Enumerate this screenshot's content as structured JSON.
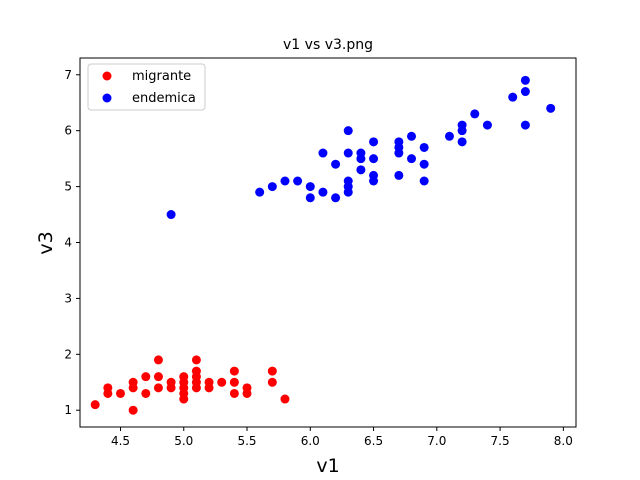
{
  "chart_data": {
    "type": "scatter",
    "title": "v1 vs v3.png",
    "xlabel": "v1",
    "ylabel": "v3",
    "xlim": [
      4.18,
      8.1
    ],
    "ylim": [
      0.7,
      7.3
    ],
    "xticks": [
      "4.5",
      "5.0",
      "5.5",
      "6.0",
      "6.5",
      "7.0",
      "7.5",
      "8.0"
    ],
    "yticks": [
      "1",
      "2",
      "3",
      "4",
      "5",
      "6",
      "7"
    ],
    "grid": false,
    "legend_position": "upper-left",
    "series": [
      {
        "name": "migrante",
        "color": "#ff0000",
        "points": [
          [
            4.3,
            1.1
          ],
          [
            4.4,
            1.4
          ],
          [
            4.4,
            1.3
          ],
          [
            4.5,
            1.3
          ],
          [
            4.6,
            1.0
          ],
          [
            4.6,
            1.4
          ],
          [
            4.6,
            1.5
          ],
          [
            4.7,
            1.3
          ],
          [
            4.7,
            1.6
          ],
          [
            4.8,
            1.4
          ],
          [
            4.8,
            1.6
          ],
          [
            4.8,
            1.9
          ],
          [
            4.9,
            1.4
          ],
          [
            4.9,
            1.5
          ],
          [
            5.0,
            1.2
          ],
          [
            5.0,
            1.3
          ],
          [
            5.0,
            1.4
          ],
          [
            5.0,
            1.5
          ],
          [
            5.0,
            1.6
          ],
          [
            5.1,
            1.4
          ],
          [
            5.1,
            1.5
          ],
          [
            5.1,
            1.6
          ],
          [
            5.1,
            1.7
          ],
          [
            5.1,
            1.9
          ],
          [
            5.2,
            1.4
          ],
          [
            5.2,
            1.5
          ],
          [
            5.3,
            1.5
          ],
          [
            5.4,
            1.3
          ],
          [
            5.4,
            1.5
          ],
          [
            5.4,
            1.7
          ],
          [
            5.5,
            1.3
          ],
          [
            5.5,
            1.4
          ],
          [
            5.7,
            1.5
          ],
          [
            5.7,
            1.7
          ],
          [
            5.8,
            1.2
          ]
        ]
      },
      {
        "name": "endemica",
        "color": "#0000ff",
        "points": [
          [
            4.9,
            4.5
          ],
          [
            5.6,
            4.9
          ],
          [
            5.7,
            5.0
          ],
          [
            5.8,
            5.1
          ],
          [
            5.9,
            5.1
          ],
          [
            6.0,
            4.8
          ],
          [
            6.0,
            5.0
          ],
          [
            6.1,
            4.9
          ],
          [
            6.1,
            5.6
          ],
          [
            6.2,
            4.8
          ],
          [
            6.2,
            5.4
          ],
          [
            6.3,
            4.9
          ],
          [
            6.3,
            5.0
          ],
          [
            6.3,
            5.1
          ],
          [
            6.3,
            5.6
          ],
          [
            6.3,
            6.0
          ],
          [
            6.4,
            5.3
          ],
          [
            6.4,
            5.5
          ],
          [
            6.4,
            5.6
          ],
          [
            6.5,
            5.1
          ],
          [
            6.5,
            5.2
          ],
          [
            6.5,
            5.5
          ],
          [
            6.5,
            5.8
          ],
          [
            6.7,
            5.2
          ],
          [
            6.7,
            5.6
          ],
          [
            6.7,
            5.7
          ],
          [
            6.7,
            5.8
          ],
          [
            6.8,
            5.5
          ],
          [
            6.8,
            5.9
          ],
          [
            6.9,
            5.1
          ],
          [
            6.9,
            5.4
          ],
          [
            6.9,
            5.7
          ],
          [
            7.1,
            5.9
          ],
          [
            7.2,
            5.8
          ],
          [
            7.2,
            6.0
          ],
          [
            7.2,
            6.1
          ],
          [
            7.3,
            6.3
          ],
          [
            7.4,
            6.1
          ],
          [
            7.6,
            6.6
          ],
          [
            7.7,
            6.1
          ],
          [
            7.7,
            6.7
          ],
          [
            7.7,
            6.9
          ],
          [
            7.9,
            6.4
          ]
        ]
      }
    ]
  }
}
